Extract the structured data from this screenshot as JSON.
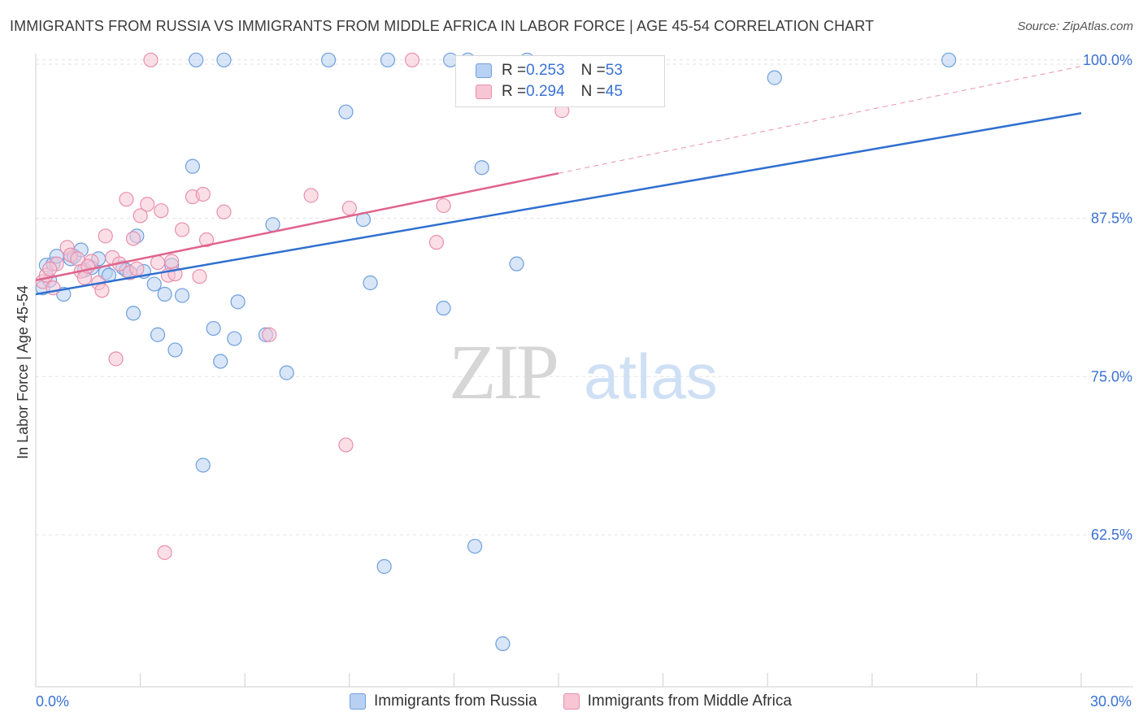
{
  "header": {
    "title": "IMMIGRANTS FROM RUSSIA VS IMMIGRANTS FROM MIDDLE AFRICA IN LABOR FORCE | AGE 45-54 CORRELATION CHART",
    "source": "Source: ZipAtlas.com"
  },
  "watermark": {
    "zip": "ZIP",
    "atlas": "atlas"
  },
  "legend": {
    "rows": [
      {
        "r_label": "R = ",
        "r_value": "0.253",
        "n_label": "N = ",
        "n_value": "53"
      },
      {
        "r_label": "R = ",
        "r_value": "0.294",
        "n_label": "N = ",
        "n_value": "45"
      }
    ]
  },
  "bottom_legend": {
    "russia": "Immigrants from Russia",
    "africa": "Immigrants from Middle Africa"
  },
  "colors": {
    "russia_fill": "#b8d1f2",
    "russia_stroke": "#6f9fdd",
    "russia_line": "#2f6fd0",
    "africa_fill": "#f7c5d4",
    "africa_stroke": "#e98fad",
    "africa_line": "#e0648c",
    "axis_text": "#3a72d4",
    "grid": "#e3e3e3"
  },
  "chart_data": {
    "type": "scatter",
    "title": "IMMIGRANTS FROM RUSSIA VS IMMIGRANTS FROM MIDDLE AFRICA IN LABOR FORCE | AGE 45-54 CORRELATION CHART",
    "xlabel": "",
    "ylabel": "In Labor Force | Age 45-54",
    "xlim": [
      0,
      30
    ],
    "ylim": [
      50.5,
      100.5
    ],
    "x_tick_labels": [
      "0.0%",
      "30.0%"
    ],
    "y_ticks": [
      62.5,
      75.0,
      87.5,
      100.0
    ],
    "y_tick_labels": [
      "62.5%",
      "75.0%",
      "87.5%",
      "100.0%"
    ],
    "grid": true,
    "series": [
      {
        "name": "Immigrants from Russia",
        "R": 0.253,
        "N": 53,
        "trend": {
          "x": [
            0,
            30
          ],
          "y": [
            81.5,
            95.8
          ],
          "dashed_after": null
        },
        "points": [
          [
            0.2,
            82.0
          ],
          [
            0.3,
            83.8
          ],
          [
            0.5,
            83.9
          ],
          [
            0.6,
            84.5
          ],
          [
            0.8,
            81.5
          ],
          [
            1.0,
            84.3
          ],
          [
            1.1,
            84.5
          ],
          [
            1.3,
            85.0
          ],
          [
            1.6,
            83.6
          ],
          [
            1.8,
            84.3
          ],
          [
            2.0,
            83.2
          ],
          [
            2.1,
            83.0
          ],
          [
            2.5,
            83.6
          ],
          [
            2.7,
            83.2
          ],
          [
            2.8,
            80.0
          ],
          [
            2.9,
            86.1
          ],
          [
            3.1,
            83.3
          ],
          [
            3.4,
            82.3
          ],
          [
            3.5,
            78.3
          ],
          [
            3.7,
            81.5
          ],
          [
            3.9,
            83.8
          ],
          [
            4.0,
            77.1
          ],
          [
            4.2,
            81.4
          ],
          [
            4.5,
            91.6
          ],
          [
            4.6,
            100.0
          ],
          [
            4.8,
            68.0
          ],
          [
            5.1,
            78.8
          ],
          [
            5.3,
            76.2
          ],
          [
            5.4,
            100.0
          ],
          [
            5.7,
            78.0
          ],
          [
            5.8,
            80.9
          ],
          [
            6.6,
            78.3
          ],
          [
            6.8,
            87.0
          ],
          [
            7.2,
            75.3
          ],
          [
            8.4,
            100.0
          ],
          [
            8.9,
            95.9
          ],
          [
            9.4,
            87.4
          ],
          [
            9.6,
            82.4
          ],
          [
            10.0,
            60.0
          ],
          [
            10.1,
            100.0
          ],
          [
            11.7,
            80.4
          ],
          [
            11.9,
            100.0
          ],
          [
            12.4,
            100.0
          ],
          [
            12.6,
            61.6
          ],
          [
            12.8,
            91.5
          ],
          [
            13.4,
            53.9
          ],
          [
            13.8,
            83.9
          ],
          [
            14.1,
            100.0
          ],
          [
            21.2,
            98.6
          ],
          [
            26.2,
            100.0
          ],
          [
            0.4,
            82.6
          ],
          [
            1.4,
            83.4
          ],
          [
            2.6,
            83.4
          ]
        ]
      },
      {
        "name": "Immigrants from Middle Africa",
        "R": 0.294,
        "N": 45,
        "trend": {
          "x": [
            0,
            30
          ],
          "y": [
            82.6,
            99.5
          ],
          "dashed_after": 15.0
        },
        "points": [
          [
            0.2,
            82.5
          ],
          [
            0.3,
            83.0
          ],
          [
            0.5,
            82.0
          ],
          [
            0.6,
            83.9
          ],
          [
            0.9,
            85.2
          ],
          [
            1.0,
            84.6
          ],
          [
            1.2,
            84.3
          ],
          [
            1.3,
            83.3
          ],
          [
            1.4,
            82.8
          ],
          [
            1.6,
            84.1
          ],
          [
            1.8,
            82.4
          ],
          [
            1.9,
            81.8
          ],
          [
            2.0,
            86.1
          ],
          [
            2.2,
            84.4
          ],
          [
            2.3,
            76.4
          ],
          [
            2.4,
            83.9
          ],
          [
            2.6,
            89.0
          ],
          [
            2.7,
            83.2
          ],
          [
            2.8,
            85.9
          ],
          [
            3.0,
            87.7
          ],
          [
            3.2,
            88.6
          ],
          [
            3.3,
            100.0
          ],
          [
            3.5,
            84.0
          ],
          [
            3.6,
            88.1
          ],
          [
            3.7,
            61.1
          ],
          [
            3.8,
            83.0
          ],
          [
            4.0,
            83.1
          ],
          [
            4.2,
            86.6
          ],
          [
            4.5,
            89.2
          ],
          [
            4.7,
            82.9
          ],
          [
            4.8,
            89.4
          ],
          [
            4.9,
            85.8
          ],
          [
            5.4,
            88.0
          ],
          [
            6.7,
            78.3
          ],
          [
            7.9,
            89.3
          ],
          [
            8.9,
            69.6
          ],
          [
            9.0,
            88.3
          ],
          [
            10.8,
            100.0
          ],
          [
            11.5,
            85.6
          ],
          [
            11.7,
            88.5
          ],
          [
            15.1,
            96.0
          ],
          [
            0.4,
            83.5
          ],
          [
            1.5,
            83.7
          ],
          [
            2.9,
            83.5
          ],
          [
            3.9,
            84.1
          ]
        ]
      }
    ]
  }
}
